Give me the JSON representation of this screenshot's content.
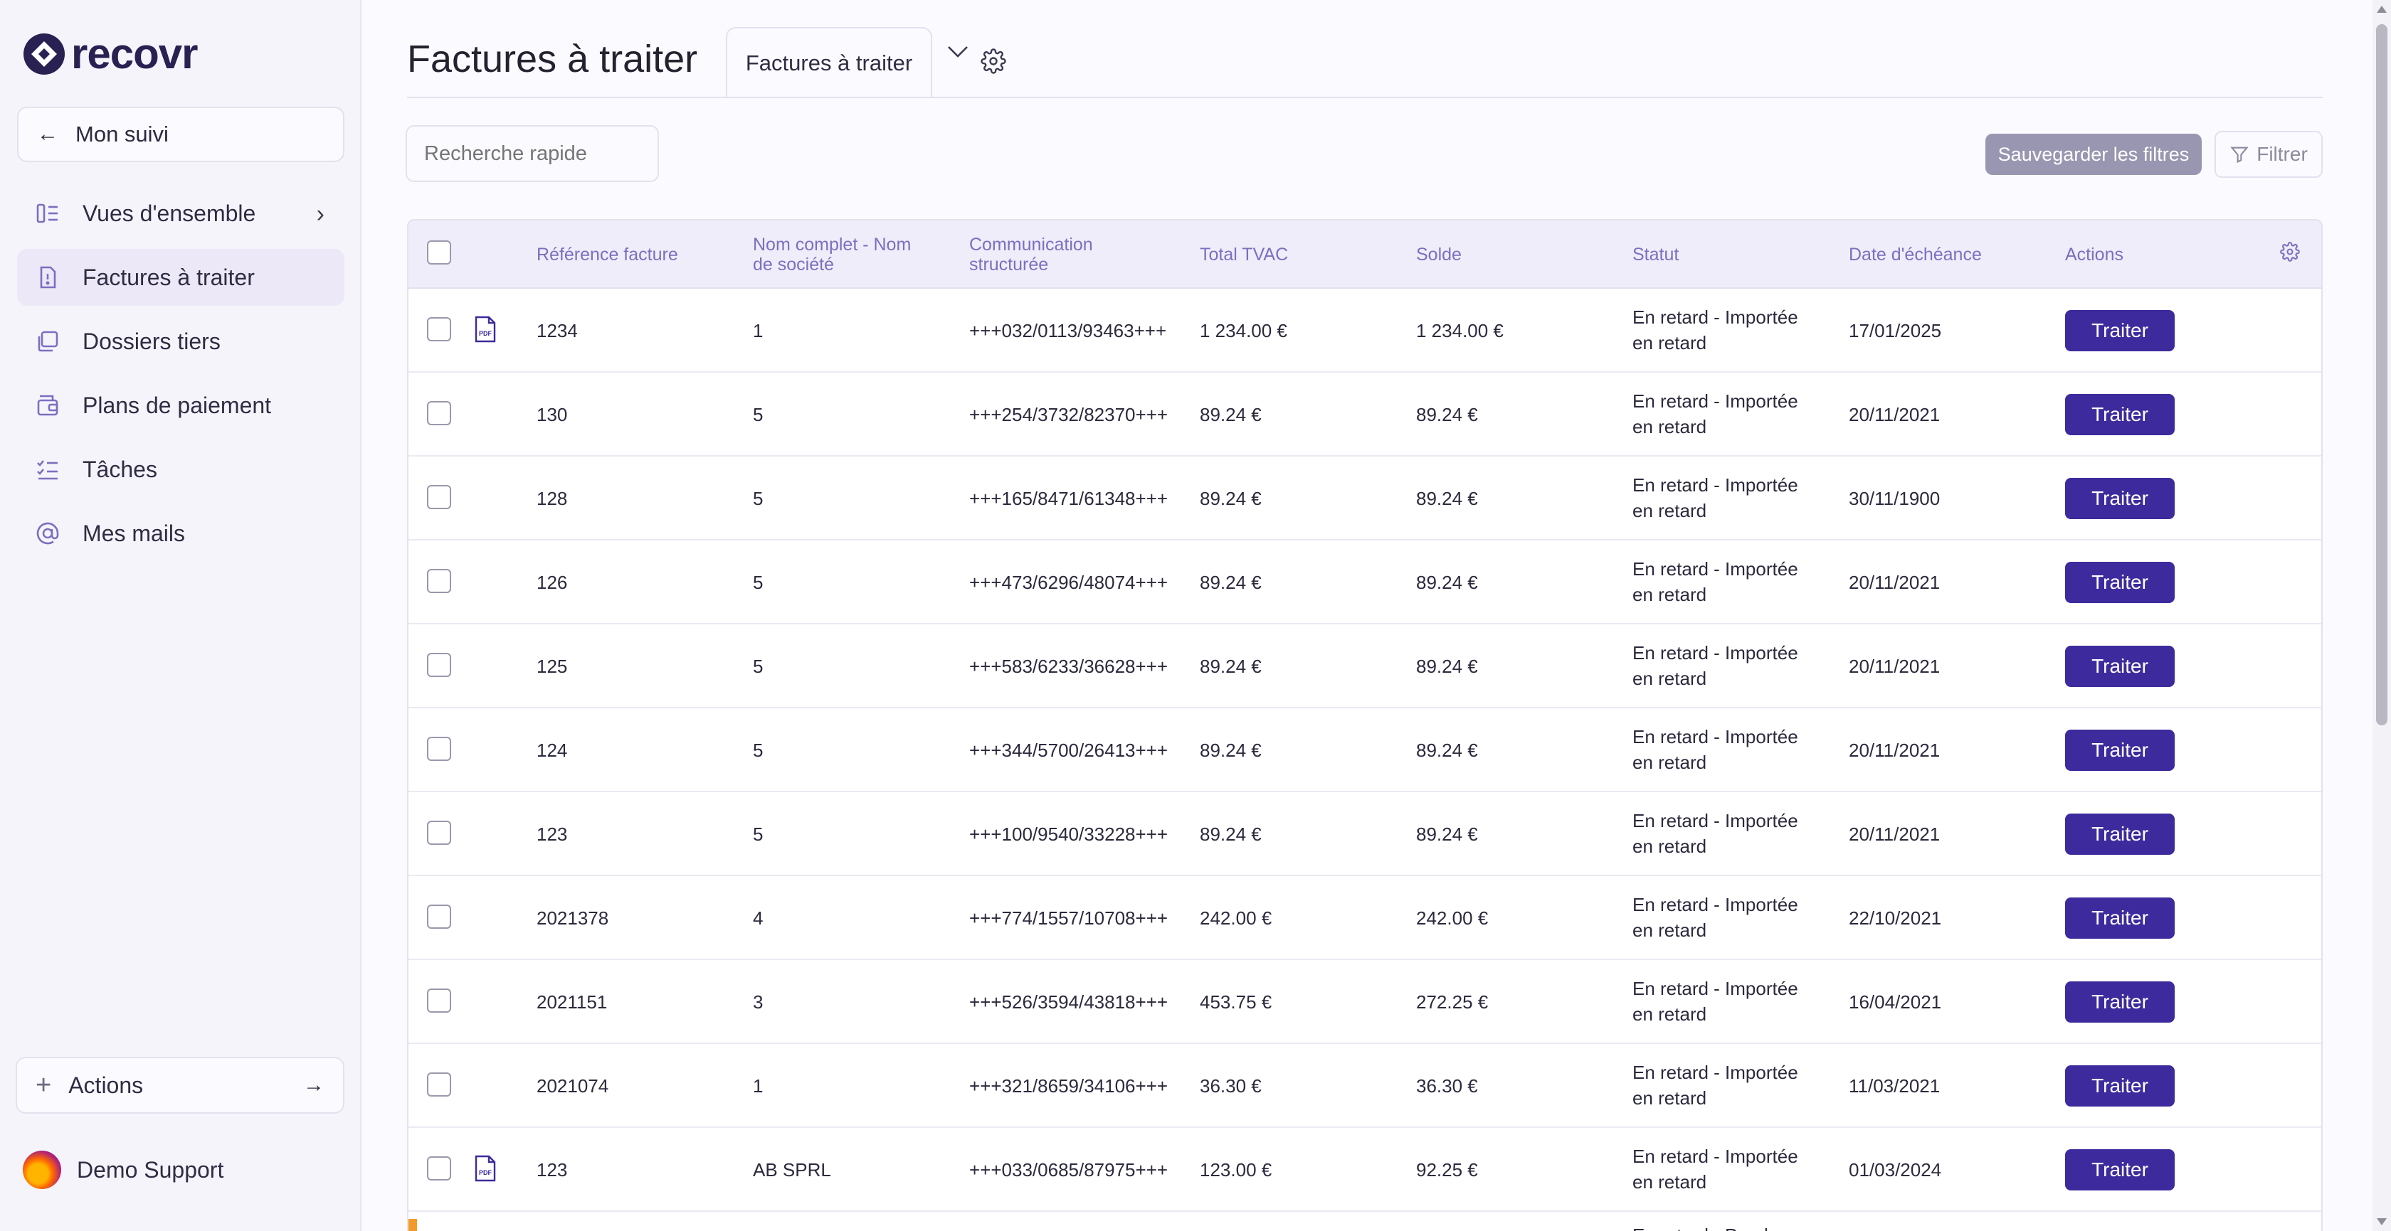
{
  "app": {
    "logo_text": "recovr"
  },
  "sidebar": {
    "back_label": "Mon suivi",
    "items": [
      {
        "label": "Vues d'ensemble",
        "icon": "overview-icon",
        "active": false,
        "has_chevron": true
      },
      {
        "label": "Factures à traiter",
        "icon": "invoice-icon",
        "active": true
      },
      {
        "label": "Dossiers tiers",
        "icon": "folders-icon",
        "active": false
      },
      {
        "label": "Plans de paiement",
        "icon": "wallet-icon",
        "active": false
      },
      {
        "label": "Tâches",
        "icon": "tasks-icon",
        "active": false
      },
      {
        "label": "Mes mails",
        "icon": "at-icon",
        "active": false
      }
    ],
    "actions_label": "Actions",
    "user_name": "Demo Support"
  },
  "header": {
    "title": "Factures à traiter",
    "tab_label": "Factures à traiter"
  },
  "toolbar": {
    "search_placeholder": "Recherche rapide",
    "save_filters_label": "Sauvegarder les filtres",
    "filter_label": "Filtrer"
  },
  "table": {
    "columns": {
      "reference": "Référence facture",
      "name_line1": "Nom complet - Nom",
      "name_line2": "de société",
      "comm_line1": "Communication",
      "comm_line2": "structurée",
      "total": "Total TVAC",
      "balance": "Solde",
      "status": "Statut",
      "due_date": "Date d'échéance",
      "actions": "Actions"
    },
    "action_label": "Traiter",
    "rows": [
      {
        "pdf": true,
        "reference": "1234",
        "name": "1",
        "communication": "+++032/0113/93463+++",
        "total": "1 234.00 €",
        "balance": "1 234.00 €",
        "status_line1": "En retard - Importée",
        "status_line2": "en retard",
        "due_date": "17/01/2025"
      },
      {
        "pdf": false,
        "reference": "130",
        "name": "5",
        "communication": "+++254/3732/82370+++",
        "total": "89.24 €",
        "balance": "89.24 €",
        "status_line1": "En retard - Importée",
        "status_line2": "en retard",
        "due_date": "20/11/2021"
      },
      {
        "pdf": false,
        "reference": "128",
        "name": "5",
        "communication": "+++165/8471/61348+++",
        "total": "89.24 €",
        "balance": "89.24 €",
        "status_line1": "En retard - Importée",
        "status_line2": "en retard",
        "due_date": "30/11/1900"
      },
      {
        "pdf": false,
        "reference": "126",
        "name": "5",
        "communication": "+++473/6296/48074+++",
        "total": "89.24 €",
        "balance": "89.24 €",
        "status_line1": "En retard - Importée",
        "status_line2": "en retard",
        "due_date": "20/11/2021"
      },
      {
        "pdf": false,
        "reference": "125",
        "name": "5",
        "communication": "+++583/6233/36628+++",
        "total": "89.24 €",
        "balance": "89.24 €",
        "status_line1": "En retard - Importée",
        "status_line2": "en retard",
        "due_date": "20/11/2021"
      },
      {
        "pdf": false,
        "reference": "124",
        "name": "5",
        "communication": "+++344/5700/26413+++",
        "total": "89.24 €",
        "balance": "89.24 €",
        "status_line1": "En retard - Importée",
        "status_line2": "en retard",
        "due_date": "20/11/2021"
      },
      {
        "pdf": false,
        "reference": "123",
        "name": "5",
        "communication": "+++100/9540/33228+++",
        "total": "89.24 €",
        "balance": "89.24 €",
        "status_line1": "En retard - Importée",
        "status_line2": "en retard",
        "due_date": "20/11/2021"
      },
      {
        "pdf": false,
        "reference": "2021378",
        "name": "4",
        "communication": "+++774/1557/10708+++",
        "total": "242.00 €",
        "balance": "242.00 €",
        "status_line1": "En retard - Importée",
        "status_line2": "en retard",
        "due_date": "22/10/2021"
      },
      {
        "pdf": false,
        "reference": "2021151",
        "name": "3",
        "communication": "+++526/3594/43818+++",
        "total": "453.75 €",
        "balance": "272.25 €",
        "status_line1": "En retard - Importée",
        "status_line2": "en retard",
        "due_date": "16/04/2021"
      },
      {
        "pdf": false,
        "reference": "2021074",
        "name": "1",
        "communication": "+++321/8659/34106+++",
        "total": "36.30 €",
        "balance": "36.30 €",
        "status_line1": "En retard - Importée",
        "status_line2": "en retard",
        "due_date": "11/03/2021"
      },
      {
        "pdf": true,
        "reference": "123",
        "name": "AB SPRL",
        "communication": "+++033/0685/87975+++",
        "total": "123.00 €",
        "balance": "92.25 €",
        "status_line1": "En retard - Importée",
        "status_line2": "en retard",
        "due_date": "01/03/2024"
      }
    ],
    "peek_text": "En retard - Pendue"
  },
  "colors": {
    "accent": "#3d2a9c",
    "save_filters_bg": "#9896b0",
    "header_text": "#7b6fc0",
    "row_warning": "#f29b2a"
  }
}
